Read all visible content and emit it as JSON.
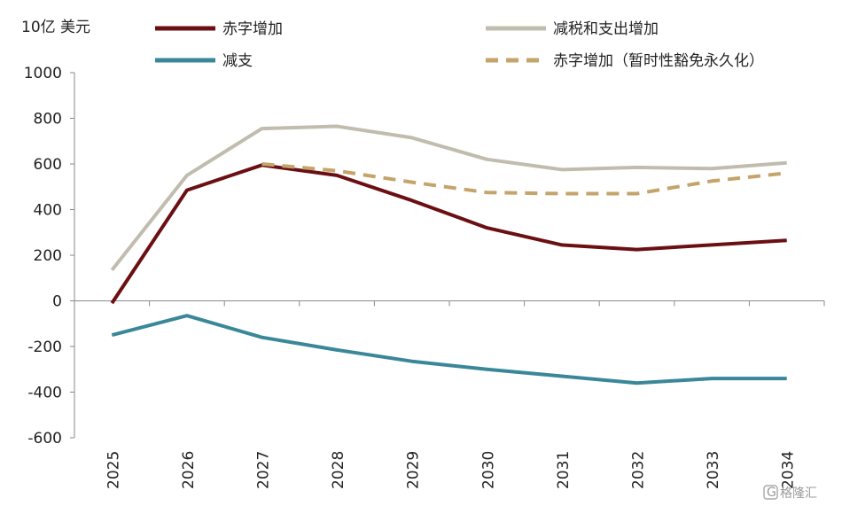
{
  "chart_data": {
    "type": "line",
    "unit_label": "10亿 美元",
    "categories": [
      "2025",
      "2026",
      "2027",
      "2028",
      "2029",
      "2030",
      "2031",
      "2032",
      "2033",
      "2034"
    ],
    "ylim": [
      -600,
      1000
    ],
    "yticks": [
      1000,
      800,
      600,
      400,
      200,
      0,
      -200,
      -400,
      -600
    ],
    "ytick_labels": [
      "1000",
      "800",
      "600",
      "400",
      "200",
      "0",
      "-200",
      "-400",
      "-600"
    ],
    "series": [
      {
        "name": "赤字增加",
        "color": "#6b0f12",
        "dashed": false,
        "values": [
          -10,
          485,
          595,
          550,
          440,
          320,
          245,
          225,
          245,
          265
        ]
      },
      {
        "name": "减税和支出增加",
        "color": "#c0bcae",
        "dashed": false,
        "values": [
          135,
          550,
          755,
          765,
          715,
          620,
          575,
          585,
          580,
          605
        ]
      },
      {
        "name": "减支",
        "color": "#3a8799",
        "dashed": false,
        "values": [
          -150,
          -65,
          -160,
          -215,
          -265,
          -300,
          -330,
          -360,
          -340,
          -340
        ]
      },
      {
        "name": "赤字增加（暂时性豁免永久化）",
        "color": "#c4a46a",
        "dashed": true,
        "values": [
          null,
          null,
          600,
          570,
          520,
          475,
          470,
          470,
          525,
          560
        ]
      }
    ],
    "legend_order": [
      0,
      1,
      2,
      3
    ],
    "legend_placement": "top"
  },
  "watermark": {
    "icon": "gelonghui-logo-icon",
    "text": "格隆汇"
  }
}
